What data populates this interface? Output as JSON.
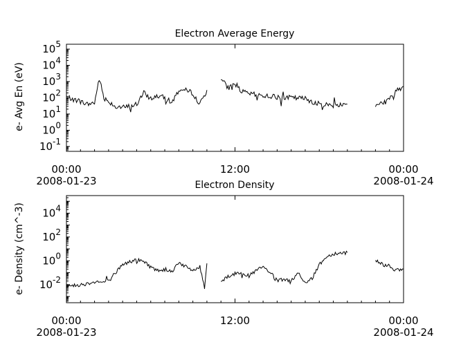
{
  "chart_data": [
    {
      "type": "line",
      "title": "Electron Average Energy",
      "ylabel": "e- Avg En (eV)",
      "xlabel": "",
      "y_scale": "log",
      "ylim": [
        0.05,
        200000
      ],
      "y_ticks": [
        {
          "value": 0.1,
          "base": "10",
          "exp": "-1"
        },
        {
          "value": 1,
          "base": "10",
          "exp": "0"
        },
        {
          "value": 10,
          "base": "10",
          "exp": "1"
        },
        {
          "value": 100,
          "base": "10",
          "exp": "2"
        },
        {
          "value": 1000,
          "base": "10",
          "exp": "3"
        },
        {
          "value": 10000,
          "base": "10",
          "exp": "4"
        },
        {
          "value": 100000,
          "base": "10",
          "exp": "5"
        }
      ],
      "x_range": [
        "2008-01-23 00:00",
        "2008-01-24 00:00"
      ],
      "x_ticks": [
        {
          "time": "00:00",
          "date": "2008-01-23"
        },
        {
          "time": "12:00",
          "date": ""
        },
        {
          "time": "00:00",
          "date": "2008-01-24"
        }
      ],
      "grid": false,
      "series": [
        {
          "segments": [
            {
              "x": [
                "2008-01-23 00:00",
                "2008-01-23 00:30",
                "2008-01-23 01:00",
                "2008-01-23 01:30",
                "2008-01-23 02:00",
                "2008-01-23 02:20",
                "2008-01-23 02:40",
                "2008-01-23 03:00",
                "2008-01-23 03:30",
                "2008-01-23 04:00",
                "2008-01-23 04:30",
                "2008-01-23 05:00",
                "2008-01-23 05:30",
                "2008-01-23 06:00",
                "2008-01-23 06:30",
                "2008-01-23 07:00",
                "2008-01-23 07:30",
                "2008-01-23 08:00",
                "2008-01-23 08:30",
                "2008-01-23 09:00",
                "2008-01-23 09:30",
                "2008-01-23 10:00"
              ],
              "y": [
                120,
                80,
                60,
                40,
                50,
                1500,
                100,
                60,
                30,
                25,
                30,
                40,
                200,
                90,
                130,
                100,
                50,
                300,
                280,
                200,
                40,
                300
              ]
            },
            {
              "x": [
                "2008-01-23 11:00",
                "2008-01-23 11:30",
                "2008-01-23 12:00",
                "2008-01-23 12:30",
                "2008-01-23 13:00",
                "2008-01-23 13:30",
                "2008-01-23 14:00",
                "2008-01-23 15:00",
                "2008-01-23 16:00",
                "2008-01-23 17:00",
                "2008-01-23 18:00",
                "2008-01-23 19:00",
                "2008-01-23 20:00"
              ],
              "y": [
                1500,
                400,
                800,
                230,
                180,
                150,
                140,
                110,
                100,
                90,
                40,
                35,
                40
              ]
            },
            {
              "x": [
                "2008-01-23 22:00",
                "2008-01-23 22:30",
                "2008-01-23 23:00",
                "2008-01-23 23:30",
                "2008-01-24 00:00"
              ],
              "y": [
                40,
                50,
                80,
                300,
                500
              ]
            }
          ]
        }
      ]
    },
    {
      "type": "line",
      "title": "Electron Density",
      "ylabel": "e- Density (cm^-3)",
      "xlabel": "",
      "y_scale": "log",
      "ylim": [
        0.0003,
        300000
      ],
      "y_ticks": [
        {
          "value": 0.01,
          "base": "10",
          "exp": "-2"
        },
        {
          "value": 1,
          "base": "10",
          "exp": "0"
        },
        {
          "value": 100,
          "base": "10",
          "exp": "2"
        },
        {
          "value": 10000,
          "base": "10",
          "exp": "4"
        }
      ],
      "x_range": [
        "2008-01-23 00:00",
        "2008-01-24 00:00"
      ],
      "x_ticks": [
        {
          "time": "00:00",
          "date": "2008-01-23"
        },
        {
          "time": "12:00",
          "date": ""
        },
        {
          "time": "00:00",
          "date": "2008-01-24"
        }
      ],
      "grid": false,
      "series": [
        {
          "segments": [
            {
              "x": [
                "2008-01-23 00:00",
                "2008-01-23 00:30",
                "2008-01-23 01:00",
                "2008-01-23 01:30",
                "2008-01-23 02:00",
                "2008-01-23 02:30",
                "2008-01-23 03:00",
                "2008-01-23 03:30",
                "2008-01-23 04:00",
                "2008-01-23 04:30",
                "2008-01-23 05:00",
                "2008-01-23 05:30",
                "2008-01-23 06:00",
                "2008-01-23 06:30",
                "2008-01-23 07:00",
                "2008-01-23 07:30",
                "2008-01-23 08:00",
                "2008-01-23 08:30",
                "2008-01-23 09:00",
                "2008-01-23 09:30",
                "2008-01-23 09:50",
                "2008-01-23 10:00"
              ],
              "y": [
                0.01,
                0.008,
                0.01,
                0.012,
                0.02,
                0.015,
                0.02,
                0.1,
                0.5,
                0.8,
                1.2,
                0.9,
                0.3,
                0.15,
                0.2,
                0.12,
                0.8,
                0.3,
                0.15,
                0.3,
                0.006,
                0.6
              ]
            },
            {
              "x": [
                "2008-01-23 11:00",
                "2008-01-23 11:30",
                "2008-01-23 12:00",
                "2008-01-23 12:30",
                "2008-01-23 13:00",
                "2008-01-23 13:30",
                "2008-01-23 14:00",
                "2008-01-23 14:30",
                "2008-01-23 15:00",
                "2008-01-23 15:30",
                "2008-01-23 16:00",
                "2008-01-23 16:30",
                "2008-01-23 17:00",
                "2008-01-23 17:30",
                "2008-01-23 18:00",
                "2008-01-23 18:30",
                "2008-01-23 19:00",
                "2008-01-23 19:30",
                "2008-01-23 20:00"
              ],
              "y": [
                0.02,
                0.05,
                0.08,
                0.12,
                0.05,
                0.15,
                0.3,
                0.1,
                0.02,
                0.03,
                0.015,
                0.1,
                0.015,
                0.03,
                0.5,
                2,
                4,
                4.5,
                5
              ]
            },
            {
              "x": [
                "2008-01-23 22:00",
                "2008-01-23 22:30",
                "2008-01-23 23:00",
                "2008-01-23 23:30",
                "2008-01-24 00:00"
              ],
              "y": [
                1.2,
                0.5,
                0.35,
                0.15,
                0.2
              ]
            }
          ]
        }
      ]
    }
  ]
}
